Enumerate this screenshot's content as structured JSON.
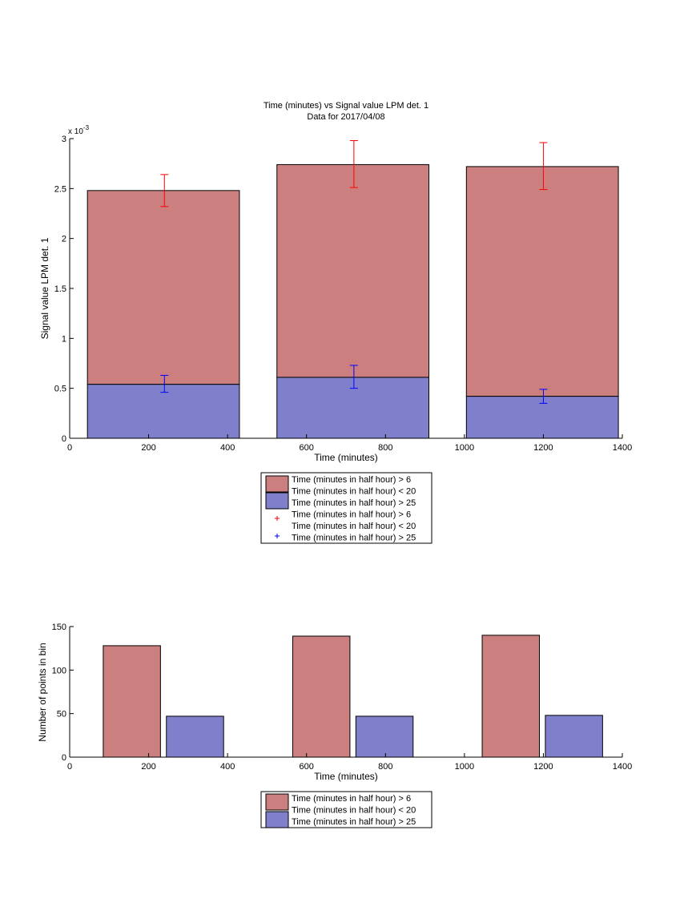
{
  "chart_data": [
    {
      "type": "bar",
      "title": "Time (minutes) vs Signal value LPM det. 1",
      "subtitle": "Data for 2017/04/08",
      "xlabel": "Time (minutes)",
      "ylabel": "Signal value LPM det. 1",
      "xlim": [
        0,
        1400
      ],
      "ylim": [
        0,
        0.003
      ],
      "y_exponent_label": "x 10",
      "y_exponent_power": "-3",
      "x_ticks": [
        0,
        200,
        400,
        600,
        800,
        1000,
        1200,
        1400
      ],
      "x_tick_labels": [
        "0",
        "200",
        "400",
        "600",
        "800",
        "1000",
        "1200",
        "1400"
      ],
      "y_ticks": [
        0,
        0.0005,
        0.001,
        0.0015,
        0.002,
        0.0025,
        0.003
      ],
      "y_tick_labels": [
        "0",
        "0.5",
        "1",
        "1.5",
        "2",
        "2.5",
        "3"
      ],
      "grid": false,
      "legend_position": "bottom-outside",
      "legend_entries": [
        "Time (minutes in half hour) > 6",
        "Time (minutes in half hour) < 20",
        "Time (minutes in half hour) > 25",
        "Time (minutes in half hour) > 6",
        "Time (minutes in half hour) < 20",
        "Time (minutes in half hour) > 25"
      ],
      "bars": [
        {
          "x_start": 45,
          "x_end": 430,
          "red": 0.00248,
          "blue": 0.00054
        },
        {
          "x_start": 525,
          "x_end": 910,
          "red": 0.00274,
          "blue": 0.00061
        },
        {
          "x_start": 1005,
          "x_end": 1390,
          "red": 0.00272,
          "blue": 0.00042
        }
      ],
      "errorbars": [
        {
          "x": 240,
          "series": "red",
          "low": 0.00232,
          "high": 0.00264
        },
        {
          "x": 720,
          "series": "red",
          "low": 0.00251,
          "high": 0.00298
        },
        {
          "x": 1200,
          "series": "red",
          "low": 0.00249,
          "high": 0.00296
        },
        {
          "x": 240,
          "series": "blue",
          "low": 0.00046,
          "high": 0.00063
        },
        {
          "x": 720,
          "series": "blue",
          "low": 0.0005,
          "high": 0.00073
        },
        {
          "x": 1200,
          "series": "blue",
          "low": 0.00035,
          "high": 0.00049
        }
      ]
    },
    {
      "type": "bar",
      "xlabel": "Time (minutes)",
      "ylabel": "Number of points in bin",
      "xlim": [
        0,
        1400
      ],
      "ylim": [
        0,
        150
      ],
      "x_ticks": [
        0,
        200,
        400,
        600,
        800,
        1000,
        1200,
        1400
      ],
      "x_tick_labels": [
        "0",
        "200",
        "400",
        "600",
        "800",
        "1000",
        "1200",
        "1400"
      ],
      "y_ticks": [
        0,
        50,
        100,
        150
      ],
      "y_tick_labels": [
        "0",
        "50",
        "100",
        "150"
      ],
      "grid": false,
      "legend_position": "bottom-outside",
      "legend_entries": [
        "Time (minutes in half hour) > 6",
        "Time (minutes in half hour) < 20",
        "Time (minutes in half hour) > 25"
      ],
      "bars": [
        {
          "x_start": 85,
          "x_end": 230,
          "series": "red",
          "value": 128
        },
        {
          "x_start": 245,
          "x_end": 390,
          "series": "blue",
          "value": 47
        },
        {
          "x_start": 565,
          "x_end": 710,
          "series": "red",
          "value": 139
        },
        {
          "x_start": 725,
          "x_end": 870,
          "series": "blue",
          "value": 47
        },
        {
          "x_start": 1045,
          "x_end": 1190,
          "series": "red",
          "value": 140
        },
        {
          "x_start": 1205,
          "x_end": 1350,
          "series": "blue",
          "value": 48
        }
      ]
    }
  ],
  "colors": {
    "red_fill": "#cc7f7f",
    "blue_fill": "#7f7fcc",
    "red_error": "#ff0000",
    "blue_error": "#0000ff",
    "axis": "#000000"
  }
}
